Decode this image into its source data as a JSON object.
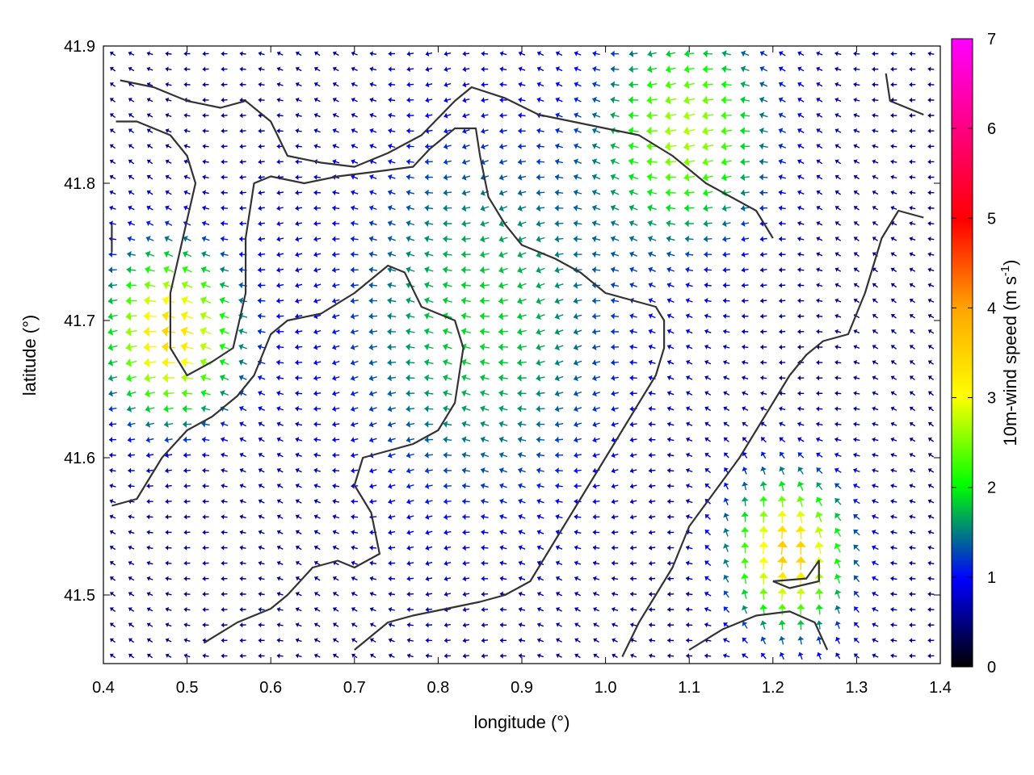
{
  "chart_data": {
    "type": "vector-field",
    "xlabel": "longitude (°)",
    "ylabel": "latitude (°)",
    "colorbar_label": "10m-wind speed (m s",
    "colorbar_label_sup": "-1",
    "colorbar_label_end": ")",
    "xlim": [
      0.4,
      1.4
    ],
    "ylim": [
      41.45,
      41.9
    ],
    "color_range": [
      0,
      7
    ],
    "x_ticks": [
      0.4,
      0.5,
      0.6,
      0.7,
      0.8,
      0.9,
      1.0,
      1.1,
      1.2,
      1.3,
      1.4
    ],
    "x_tick_labels": [
      "0.4",
      "0.5",
      "0.6",
      "0.7",
      "0.8",
      "0.9",
      "1.0",
      "1.1",
      "1.2",
      "1.3",
      "1.4"
    ],
    "y_ticks": [
      41.5,
      41.6,
      41.7,
      41.8,
      41.9
    ],
    "y_tick_labels": [
      "41.5",
      "41.6",
      "41.7",
      "41.8",
      "41.9"
    ],
    "colorbar_ticks": [
      0,
      1,
      2,
      3,
      4,
      5,
      6,
      7
    ],
    "colorbar_tick_labels": [
      "0",
      "1",
      "2",
      "3",
      "4",
      "5",
      "6",
      "7"
    ],
    "colormap": [
      "#000000",
      "#0000ff",
      "#00ff00",
      "#ffff00",
      "#ffa500",
      "#ff0000",
      "#ff00ff"
    ],
    "grid": false,
    "field_grid": {
      "nx": 45,
      "ny": 40
    },
    "wind_regions": [
      {
        "name": "west",
        "lon": 0.48,
        "lat": 41.69,
        "speed": 3.2,
        "radius": 0.08,
        "dir_deg": 180
      },
      {
        "name": "southeast",
        "lon": 1.22,
        "lat": 41.53,
        "speed": 3.4,
        "radius": 0.07,
        "dir_deg": 95
      },
      {
        "name": "northeast",
        "lon": 1.1,
        "lat": 41.84,
        "speed": 2.3,
        "radius": 0.1,
        "dir_deg": 175
      },
      {
        "name": "center",
        "lon": 0.85,
        "lat": 41.7,
        "speed": 1.5,
        "radius": 0.18,
        "dir_deg": 185
      }
    ],
    "coastlines": [
      [
        [
          0.42,
          41.875
        ],
        [
          0.46,
          41.87
        ],
        [
          0.5,
          41.86
        ],
        [
          0.54,
          41.855
        ],
        [
          0.57,
          41.86
        ],
        [
          0.6,
          41.845
        ],
        [
          0.62,
          41.82
        ],
        [
          0.66,
          41.815
        ],
        [
          0.7,
          41.812
        ],
        [
          0.74,
          41.822
        ],
        [
          0.78,
          41.835
        ],
        [
          0.82,
          41.86
        ],
        [
          0.84,
          41.87
        ],
        [
          0.88,
          41.862
        ],
        [
          0.92,
          41.85
        ],
        [
          0.96,
          41.845
        ],
        [
          1.0,
          41.84
        ],
        [
          1.04,
          41.835
        ],
        [
          1.08,
          41.82
        ],
        [
          1.12,
          41.8
        ],
        [
          1.15,
          41.79
        ],
        [
          1.18,
          41.78
        ],
        [
          1.2,
          41.76
        ]
      ],
      [
        [
          0.415,
          41.845
        ],
        [
          0.44,
          41.845
        ],
        [
          0.48,
          41.835
        ],
        [
          0.5,
          41.82
        ],
        [
          0.51,
          41.8
        ],
        [
          0.495,
          41.76
        ],
        [
          0.48,
          41.72
        ],
        [
          0.48,
          41.68
        ],
        [
          0.5,
          41.66
        ],
        [
          0.53,
          41.67
        ],
        [
          0.555,
          41.68
        ],
        [
          0.57,
          41.72
        ],
        [
          0.57,
          41.76
        ],
        [
          0.58,
          41.8
        ],
        [
          0.6,
          41.805
        ],
        [
          0.64,
          41.8
        ],
        [
          0.68,
          41.805
        ],
        [
          0.72,
          41.808
        ],
        [
          0.77,
          41.812
        ],
        [
          0.79,
          41.825
        ],
        [
          0.82,
          41.84
        ],
        [
          0.845,
          41.84
        ],
        [
          0.85,
          41.82
        ],
        [
          0.86,
          41.79
        ],
        [
          0.88,
          41.77
        ],
        [
          0.9,
          41.755
        ],
        [
          0.94,
          41.745
        ],
        [
          0.97,
          41.735
        ],
        [
          1.0,
          41.72
        ],
        [
          1.03,
          41.715
        ],
        [
          1.06,
          41.71
        ],
        [
          1.07,
          41.7
        ],
        [
          1.07,
          41.68
        ],
        [
          1.06,
          41.66
        ],
        [
          1.04,
          41.64
        ],
        [
          1.02,
          41.62
        ],
        [
          1.0,
          41.6
        ],
        [
          0.97,
          41.57
        ],
        [
          0.94,
          41.54
        ],
        [
          0.91,
          41.51
        ],
        [
          0.88,
          41.5
        ],
        [
          0.85,
          41.495
        ],
        [
          0.81,
          41.49
        ],
        [
          0.77,
          41.485
        ],
        [
          0.74,
          41.48
        ],
        [
          0.72,
          41.47
        ],
        [
          0.7,
          41.46
        ]
      ],
      [
        [
          0.41,
          41.565
        ],
        [
          0.44,
          41.57
        ],
        [
          0.47,
          41.6
        ],
        [
          0.5,
          41.62
        ],
        [
          0.53,
          41.63
        ],
        [
          0.56,
          41.645
        ],
        [
          0.58,
          41.66
        ],
        [
          0.6,
          41.69
        ],
        [
          0.62,
          41.7
        ],
        [
          0.66,
          41.705
        ],
        [
          0.7,
          41.72
        ],
        [
          0.74,
          41.74
        ],
        [
          0.76,
          41.735
        ],
        [
          0.78,
          41.71
        ],
        [
          0.82,
          41.7
        ],
        [
          0.83,
          41.68
        ],
        [
          0.82,
          41.64
        ],
        [
          0.8,
          41.62
        ],
        [
          0.77,
          41.61
        ],
        [
          0.74,
          41.605
        ],
        [
          0.71,
          41.6
        ],
        [
          0.7,
          41.58
        ],
        [
          0.72,
          41.56
        ],
        [
          0.73,
          41.53
        ],
        [
          0.7,
          41.52
        ],
        [
          0.68,
          41.525
        ],
        [
          0.65,
          41.52
        ],
        [
          0.62,
          41.5
        ],
        [
          0.6,
          41.49
        ],
        [
          0.56,
          41.48
        ],
        [
          0.52,
          41.465
        ]
      ],
      [
        [
          1.02,
          41.455
        ],
        [
          1.04,
          41.48
        ],
        [
          1.06,
          41.5
        ],
        [
          1.08,
          41.52
        ],
        [
          1.1,
          41.55
        ],
        [
          1.13,
          41.575
        ],
        [
          1.16,
          41.6
        ],
        [
          1.18,
          41.62
        ],
        [
          1.2,
          41.64
        ],
        [
          1.22,
          41.66
        ],
        [
          1.24,
          41.675
        ],
        [
          1.26,
          41.685
        ],
        [
          1.29,
          41.69
        ],
        [
          1.31,
          41.72
        ],
        [
          1.33,
          41.76
        ],
        [
          1.35,
          41.78
        ],
        [
          1.38,
          41.775
        ]
      ],
      [
        [
          1.2,
          41.51
        ],
        [
          1.24,
          41.512
        ],
        [
          1.255,
          41.525
        ],
        [
          1.255,
          41.51
        ],
        [
          1.22,
          41.505
        ],
        [
          1.2,
          41.51
        ]
      ],
      [
        [
          1.1,
          41.46
        ],
        [
          1.14,
          41.475
        ],
        [
          1.18,
          41.485
        ],
        [
          1.22,
          41.488
        ],
        [
          1.25,
          41.48
        ],
        [
          1.265,
          41.46
        ]
      ],
      [
        [
          0.41,
          41.77
        ],
        [
          0.41,
          41.75
        ]
      ],
      [
        [
          1.335,
          41.88
        ],
        [
          1.34,
          41.86
        ],
        [
          1.36,
          41.855
        ],
        [
          1.38,
          41.85
        ]
      ]
    ]
  }
}
